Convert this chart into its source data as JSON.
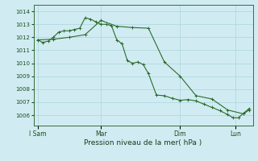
{
  "background_color": "#d0ecf2",
  "grid_color": "#b0d8e0",
  "line_color": "#2d6a2d",
  "title": "Pression niveau de la mer( hPa )",
  "ylim": [
    1005.2,
    1014.5
  ],
  "yticks": [
    1006,
    1007,
    1008,
    1009,
    1010,
    1011,
    1012,
    1013,
    1014
  ],
  "xtick_labels": [
    "I Sam",
    "Mar",
    "Dim",
    "Lun"
  ],
  "xtick_positions": [
    0,
    48,
    108,
    150
  ],
  "line1_x": [
    0,
    4,
    8,
    12,
    16,
    20,
    24,
    28,
    32,
    36,
    40,
    44,
    48,
    52,
    56,
    60,
    64,
    68,
    72,
    76,
    80,
    84,
    90,
    96,
    102,
    108,
    114,
    120,
    126,
    132,
    138,
    144,
    148,
    152,
    156,
    160
  ],
  "line1_y": [
    1011.8,
    1011.6,
    1011.7,
    1012.0,
    1012.4,
    1012.5,
    1012.5,
    1012.6,
    1012.7,
    1013.5,
    1013.4,
    1013.2,
    1013.0,
    1013.0,
    1012.9,
    1011.8,
    1011.5,
    1010.2,
    1010.0,
    1010.1,
    1009.9,
    1009.2,
    1007.55,
    1007.5,
    1007.3,
    1007.15,
    1007.2,
    1007.1,
    1006.85,
    1006.6,
    1006.35,
    1006.05,
    1005.8,
    1005.8,
    1006.15,
    1006.5
  ],
  "line2_x": [
    0,
    12,
    24,
    36,
    48,
    60,
    72,
    84,
    96,
    108,
    120,
    132,
    144,
    156,
    160
  ],
  "line2_y": [
    1011.8,
    1011.85,
    1012.0,
    1012.2,
    1013.3,
    1012.85,
    1012.75,
    1012.7,
    1010.1,
    1009.0,
    1007.5,
    1007.25,
    1006.4,
    1006.1,
    1006.4
  ]
}
